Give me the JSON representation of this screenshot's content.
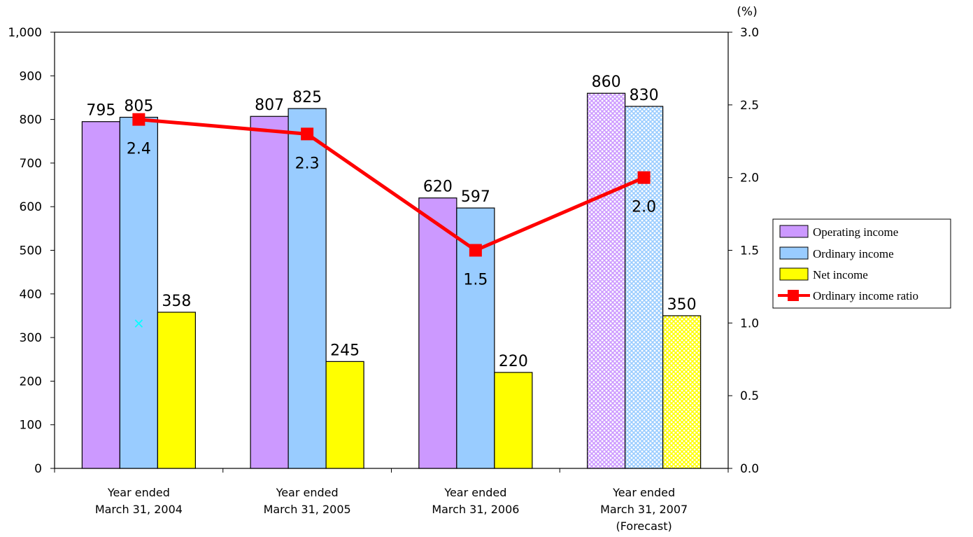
{
  "chart_data": {
    "type": "bar",
    "categories": [
      [
        "Year ended",
        "March 31, 2004"
      ],
      [
        "Year ended",
        "March 31, 2005"
      ],
      [
        "Year ended",
        "March 31, 2006"
      ],
      [
        "Year ended",
        "March 31, 2007",
        "(Forecast)"
      ]
    ],
    "series": [
      {
        "name": "Operating income",
        "type": "bar",
        "axis": "left",
        "values": [
          795,
          807,
          620,
          860
        ],
        "color": "#cc99ff",
        "forecast_hatched": [
          false,
          false,
          false,
          true
        ]
      },
      {
        "name": "Ordinary income",
        "type": "bar",
        "axis": "left",
        "values": [
          805,
          825,
          597,
          830
        ],
        "color": "#99ccff",
        "forecast_hatched": [
          false,
          false,
          false,
          true
        ]
      },
      {
        "name": "Net income",
        "type": "bar",
        "axis": "left",
        "values": [
          358,
          245,
          220,
          350
        ],
        "color": "#ffff00",
        "forecast_hatched": [
          false,
          false,
          false,
          true
        ]
      },
      {
        "name": "Ordinary income ratio",
        "type": "line",
        "axis": "right",
        "values": [
          2.4,
          2.3,
          1.5,
          2.0
        ],
        "value_labels": [
          "2.4",
          "2.3",
          "1.5",
          "2.0"
        ],
        "color": "#ff0000"
      }
    ],
    "y_left": {
      "min": 0,
      "max": 1000,
      "step": 100,
      "tick_labels": [
        "0",
        "100",
        "200",
        "300",
        "400",
        "500",
        "600",
        "700",
        "800",
        "900",
        "1,000"
      ]
    },
    "y_right": {
      "min": 0,
      "max": 3,
      "step": 0.5,
      "unit": "(%)",
      "tick_labels": [
        "0.0",
        "0.5",
        "1.0",
        "1.5",
        "2.0",
        "2.5",
        "3.0"
      ]
    },
    "grid": false,
    "legend_position": "right",
    "annotation_marker": {
      "symbol": "×",
      "color": "#00ffff",
      "category_index": 0,
      "y_value": 333
    }
  }
}
